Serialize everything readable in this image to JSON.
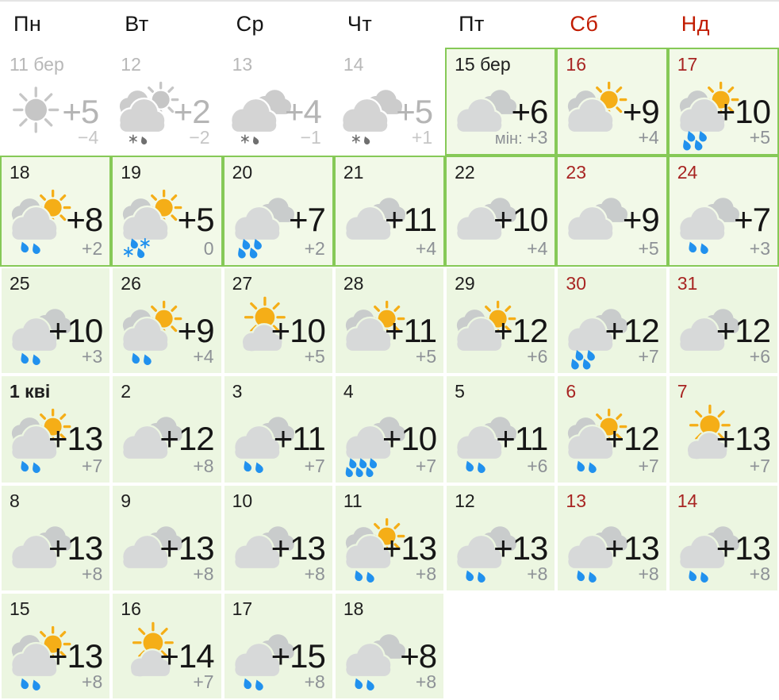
{
  "weekdays": [
    {
      "label": "Пн",
      "weekend": false
    },
    {
      "label": "Вт",
      "weekend": false
    },
    {
      "label": "Ср",
      "weekend": false
    },
    {
      "label": "Чт",
      "weekend": false
    },
    {
      "label": "Пт",
      "weekend": false
    },
    {
      "label": "Сб",
      "weekend": true
    },
    {
      "label": "Нд",
      "weekend": true
    }
  ],
  "colors": {
    "border_green": "#86c957",
    "bg_forecast": "#f2f9e8",
    "bg_month": "#ecf6e1",
    "header_weekend_red": "#c11b00",
    "date_weekend_red": "#a82523",
    "sun": "#f5ae17",
    "cloud_front": "#d7d9d9",
    "cloud_back": "#c9cccc",
    "rain_blue": "#2191ee",
    "past_icon_cloud": "#d4d4d4",
    "past_icon_sun": "#c6c6c6",
    "past_precip": "#6f6f6f"
  },
  "cells": [
    {
      "date": "11 бер",
      "state": "past",
      "weekend": false,
      "icon": "sun",
      "precip": "none",
      "temp": "+5",
      "min": "−4"
    },
    {
      "date": "12",
      "state": "past",
      "weekend": false,
      "icon": "sun-cloud",
      "precip": "snowrain",
      "temp": "+2",
      "min": "−2"
    },
    {
      "date": "13",
      "state": "past",
      "weekend": false,
      "icon": "cloud",
      "precip": "snowrain",
      "temp": "+4",
      "min": "−1"
    },
    {
      "date": "14",
      "state": "past",
      "weekend": false,
      "icon": "cloud",
      "precip": "snowrain",
      "temp": "+5",
      "min": "+1"
    },
    {
      "date": "15 бер",
      "state": "bordered",
      "weekend": false,
      "icon": "cloud",
      "precip": "none",
      "temp": "+6",
      "min": "+3",
      "min_prefix": "мін: "
    },
    {
      "date": "16",
      "state": "bordered",
      "weekend": true,
      "icon": "sun-cloud",
      "precip": "none",
      "temp": "+9",
      "min": "+4"
    },
    {
      "date": "17",
      "state": "bordered",
      "weekend": true,
      "icon": "sun-cloud",
      "precip": "rain4",
      "temp": "+10",
      "min": "+5"
    },
    {
      "date": "18",
      "state": "bordered",
      "weekend": false,
      "icon": "sun-cloud",
      "precip": "rain2",
      "temp": "+8",
      "min": "+2"
    },
    {
      "date": "19",
      "state": "bordered",
      "weekend": false,
      "icon": "sun-cloud",
      "precip": "snowrain-mix",
      "temp": "+5",
      "min": "0"
    },
    {
      "date": "20",
      "state": "bordered",
      "weekend": false,
      "icon": "cloud",
      "precip": "rain4",
      "temp": "+7",
      "min": "+2"
    },
    {
      "date": "21",
      "state": "bordered",
      "weekend": false,
      "icon": "cloud",
      "precip": "none",
      "temp": "+11",
      "min": "+4"
    },
    {
      "date": "22",
      "state": "bordered",
      "weekend": false,
      "icon": "cloud",
      "precip": "none",
      "temp": "+10",
      "min": "+4"
    },
    {
      "date": "23",
      "state": "bordered",
      "weekend": true,
      "icon": "cloud",
      "precip": "none",
      "temp": "+9",
      "min": "+5"
    },
    {
      "date": "24",
      "state": "bordered",
      "weekend": true,
      "icon": "cloud",
      "precip": "rain2",
      "temp": "+7",
      "min": "+3"
    },
    {
      "date": "25",
      "state": "plain",
      "weekend": false,
      "icon": "cloud",
      "precip": "rain2",
      "temp": "+10",
      "min": "+3"
    },
    {
      "date": "26",
      "state": "plain",
      "weekend": false,
      "icon": "sun-cloud",
      "precip": "rain2",
      "temp": "+9",
      "min": "+4"
    },
    {
      "date": "27",
      "state": "plain",
      "weekend": false,
      "icon": "sun-over-cloud",
      "precip": "none",
      "temp": "+10",
      "min": "+5"
    },
    {
      "date": "28",
      "state": "plain",
      "weekend": false,
      "icon": "sun-cloud",
      "precip": "none",
      "temp": "+11",
      "min": "+5"
    },
    {
      "date": "29",
      "state": "plain",
      "weekend": false,
      "icon": "sun-cloud",
      "precip": "none",
      "temp": "+12",
      "min": "+6"
    },
    {
      "date": "30",
      "state": "plain",
      "weekend": true,
      "icon": "cloud",
      "precip": "rain4",
      "temp": "+12",
      "min": "+7"
    },
    {
      "date": "31",
      "state": "plain",
      "weekend": true,
      "icon": "cloud",
      "precip": "none",
      "temp": "+12",
      "min": "+6"
    },
    {
      "date": "1 кві",
      "state": "plain",
      "weekend": false,
      "bold": true,
      "icon": "sun-cloud",
      "precip": "rain2",
      "temp": "+13",
      "min": "+7"
    },
    {
      "date": "2",
      "state": "plain",
      "weekend": false,
      "icon": "cloud",
      "precip": "none",
      "temp": "+12",
      "min": "+8"
    },
    {
      "date": "3",
      "state": "plain",
      "weekend": false,
      "icon": "cloud",
      "precip": "rain2",
      "temp": "+11",
      "min": "+7"
    },
    {
      "date": "4",
      "state": "plain",
      "weekend": false,
      "icon": "cloud",
      "precip": "rain6",
      "temp": "+10",
      "min": "+7"
    },
    {
      "date": "5",
      "state": "plain",
      "weekend": false,
      "icon": "cloud",
      "precip": "rain2",
      "temp": "+11",
      "min": "+6"
    },
    {
      "date": "6",
      "state": "plain",
      "weekend": true,
      "icon": "sun-cloud",
      "precip": "rain2",
      "temp": "+12",
      "min": "+7"
    },
    {
      "date": "7",
      "state": "plain",
      "weekend": true,
      "icon": "sun-over-cloud",
      "precip": "none",
      "temp": "+13",
      "min": "+7"
    },
    {
      "date": "8",
      "state": "plain",
      "weekend": false,
      "icon": "cloud",
      "precip": "none",
      "temp": "+13",
      "min": "+8"
    },
    {
      "date": "9",
      "state": "plain",
      "weekend": false,
      "icon": "cloud",
      "precip": "none",
      "temp": "+13",
      "min": "+8"
    },
    {
      "date": "10",
      "state": "plain",
      "weekend": false,
      "icon": "cloud",
      "precip": "none",
      "temp": "+13",
      "min": "+8"
    },
    {
      "date": "11",
      "state": "plain",
      "weekend": false,
      "icon": "sun-cloud",
      "precip": "rain2",
      "temp": "+13",
      "min": "+8"
    },
    {
      "date": "12",
      "state": "plain",
      "weekend": false,
      "icon": "cloud",
      "precip": "rain2",
      "temp": "+13",
      "min": "+8"
    },
    {
      "date": "13",
      "state": "plain",
      "weekend": true,
      "icon": "cloud",
      "precip": "rain2",
      "temp": "+13",
      "min": "+8"
    },
    {
      "date": "14",
      "state": "plain",
      "weekend": true,
      "icon": "cloud",
      "precip": "rain2",
      "temp": "+13",
      "min": "+8"
    },
    {
      "date": "15",
      "state": "plain",
      "weekend": false,
      "icon": "sun-cloud",
      "precip": "rain2",
      "temp": "+13",
      "min": "+8"
    },
    {
      "date": "16",
      "state": "plain",
      "weekend": false,
      "icon": "sun-over-cloud",
      "precip": "none",
      "temp": "+14",
      "min": "+7"
    },
    {
      "date": "17",
      "state": "plain",
      "weekend": false,
      "icon": "cloud",
      "precip": "rain2",
      "temp": "+15",
      "min": "+8"
    },
    {
      "date": "18",
      "state": "plain",
      "weekend": false,
      "icon": "cloud",
      "precip": "rain2",
      "temp": "+8",
      "min": "+8"
    },
    {
      "state": "empty"
    },
    {
      "state": "empty"
    },
    {
      "state": "empty"
    }
  ]
}
